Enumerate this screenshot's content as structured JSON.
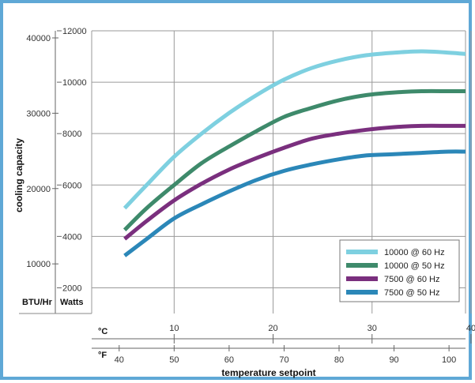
{
  "chart_data": {
    "type": "line",
    "ylabel": "cooling capacity",
    "xlabel": "temperature setpoint",
    "y_units": {
      "btu": "BTU/Hr",
      "watts": "Watts"
    },
    "x_units": {
      "celsius": "°C",
      "fahrenheit": "°F"
    },
    "celsius_ticks": [
      10,
      20,
      30,
      40
    ],
    "fahrenheit_ticks": [
      40,
      50,
      60,
      70,
      80,
      90,
      100
    ],
    "watts_ticks": [
      2000,
      4000,
      6000,
      8000,
      10000,
      12000
    ],
    "btu_ticks": [
      10000,
      20000,
      30000,
      40000
    ],
    "x_range_f": [
      35,
      103
    ],
    "y_range_watts": [
      1000,
      12000
    ],
    "grid": true,
    "legend_position": "bottom-right",
    "series": [
      {
        "name": "10000 @ 60 Hz",
        "color": "#7ed0e0",
        "x": [
          41,
          45,
          50,
          55,
          60,
          65,
          70,
          75,
          80,
          85,
          90,
          95,
          100,
          103
        ],
        "y": [
          5100,
          6000,
          7100,
          8000,
          8800,
          9500,
          10100,
          10550,
          10850,
          11050,
          11150,
          11200,
          11150,
          11100
        ]
      },
      {
        "name": "10000 @ 50 Hz",
        "color": "#3e8a6b",
        "x": [
          41,
          45,
          50,
          55,
          60,
          65,
          70,
          75,
          80,
          85,
          90,
          95,
          100,
          103
        ],
        "y": [
          4250,
          5100,
          6000,
          6850,
          7500,
          8100,
          8650,
          9000,
          9300,
          9500,
          9600,
          9650,
          9650,
          9650
        ]
      },
      {
        "name": "7500 @ 60 Hz",
        "color": "#7a2f7e",
        "x": [
          41,
          45,
          50,
          55,
          60,
          65,
          70,
          75,
          80,
          85,
          90,
          95,
          100,
          103
        ],
        "y": [
          3900,
          4600,
          5400,
          6050,
          6600,
          7050,
          7450,
          7800,
          8000,
          8150,
          8250,
          8300,
          8300,
          8300
        ]
      },
      {
        "name": "7500 @ 50 Hz",
        "color": "#2b87b8",
        "x": [
          41,
          45,
          50,
          55,
          60,
          65,
          70,
          75,
          80,
          85,
          90,
          95,
          100,
          103
        ],
        "y": [
          3250,
          3900,
          4700,
          5250,
          5750,
          6200,
          6550,
          6800,
          7000,
          7150,
          7200,
          7250,
          7300,
          7300
        ]
      }
    ]
  }
}
